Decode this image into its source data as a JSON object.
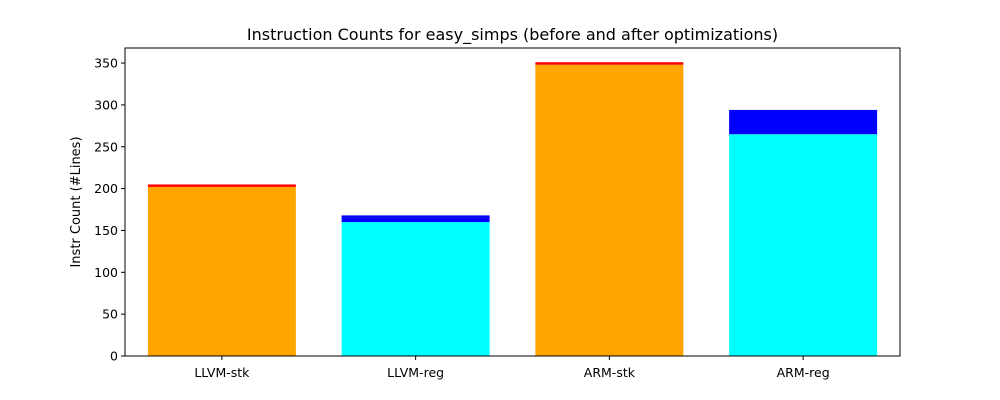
{
  "chart_data": {
    "type": "bar",
    "stacked": true,
    "title": "Instruction Counts for easy_simps (before and after optimizations)",
    "xlabel": "",
    "ylabel": "Instr Count (#Lines)",
    "categories": [
      "LLVM-stk",
      "LLVM-reg",
      "ARM-stk",
      "ARM-reg"
    ],
    "ylim": [
      0,
      368
    ],
    "yticks": [
      0,
      50,
      100,
      150,
      200,
      250,
      300,
      350
    ],
    "grid": false,
    "legend": "none",
    "bars": [
      {
        "category": "LLVM-stk",
        "base": 202,
        "base_color": "#ffa500",
        "top": 3,
        "top_color": "#ff0000"
      },
      {
        "category": "LLVM-reg",
        "base": 160,
        "base_color": "#00ffff",
        "top": 8,
        "top_color": "#0000ff"
      },
      {
        "category": "ARM-stk",
        "base": 348,
        "base_color": "#ffa500",
        "top": 3,
        "top_color": "#ff0000"
      },
      {
        "category": "ARM-reg",
        "base": 265,
        "base_color": "#00ffff",
        "top": 29,
        "top_color": "#0000ff"
      }
    ]
  }
}
